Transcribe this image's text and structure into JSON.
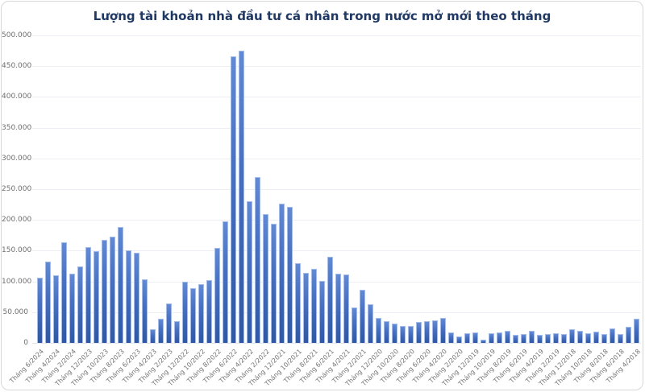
{
  "chart_data": {
    "type": "bar",
    "title": "Lượng tài khoản nhà đầu tư cá nhân trong nước mở mới theo tháng",
    "xlabel": "",
    "ylabel": "",
    "ylim": [
      0,
      500000
    ],
    "ytick_step": 50000,
    "ytick_labels": [
      "500.000",
      "450.000",
      "400.000",
      "350.000",
      "300.000",
      "250.000",
      "200.000",
      "150.000",
      "100.000",
      "50.000",
      "0"
    ],
    "grid": "horizontal",
    "legend": "none",
    "bars_total": 75,
    "label_every_n_bars": 2,
    "tick_labels": [
      "Tháng 6/2024",
      "Tháng 4/2024",
      "Tháng 2/2024",
      "Tháng 12/2023",
      "Tháng 10/2023",
      "Tháng 8/2023",
      "Tháng 6/2023",
      "Tháng 4/2023",
      "Tháng 2/2023",
      "Tháng 12/2022",
      "Tháng 10/2022",
      "Tháng 8/2022",
      "Tháng 6/2022",
      "Tháng 4/2022",
      "Tháng 2/2022",
      "Tháng 12/2021",
      "Tháng 10/2021",
      "Tháng 8/2021",
      "Tháng 6/2021",
      "Tháng 4/2021",
      "Tháng 2/2021",
      "Tháng 12/2020",
      "Tháng 10/2020",
      "Tháng 8/2020",
      "Tháng 6/2020",
      "Tháng 4/2020",
      "Tháng 2/2020",
      "Tháng 12/2019",
      "Tháng 10/2019",
      "Tháng 8/2019",
      "Tháng 6/2019",
      "Tháng 4/2019",
      "Tháng 2/2019",
      "Tháng 12/2018",
      "Tháng 10/2018",
      "Tháng 8/2018",
      "Tháng 6/2018",
      "Tháng 4/2018"
    ],
    "values": [
      106000,
      132000,
      110000,
      164000,
      113000,
      125000,
      156000,
      149000,
      167000,
      173000,
      188000,
      151000,
      146000,
      104000,
      22000,
      39000,
      64000,
      35000,
      99000,
      89000,
      96000,
      102000,
      154000,
      198000,
      466000,
      475000,
      231000,
      270000,
      210000,
      194000,
      226000,
      221000,
      129000,
      114000,
      120000,
      101000,
      140000,
      113000,
      111000,
      57000,
      86000,
      63000,
      41000,
      36000,
      31000,
      28000,
      27000,
      34000,
      35000,
      37000,
      40000,
      17000,
      10000,
      16000,
      17000,
      5000,
      16000,
      17000,
      19000,
      13000,
      15000,
      19000,
      13000,
      15000,
      16000,
      15000,
      22000,
      20000,
      16000,
      18000,
      15000,
      23000,
      15000,
      26000,
      39000
    ]
  },
  "colors": {
    "title": "#1f3864",
    "bar_gradient_top": "#6089d6",
    "bar_gradient_bottom": "#2d58a7",
    "bar_border": "#a5bbe8",
    "gridline": "#eceef4",
    "axis_text": "#757575",
    "frame_border": "#d8d8d8",
    "background": "#ffffff"
  }
}
